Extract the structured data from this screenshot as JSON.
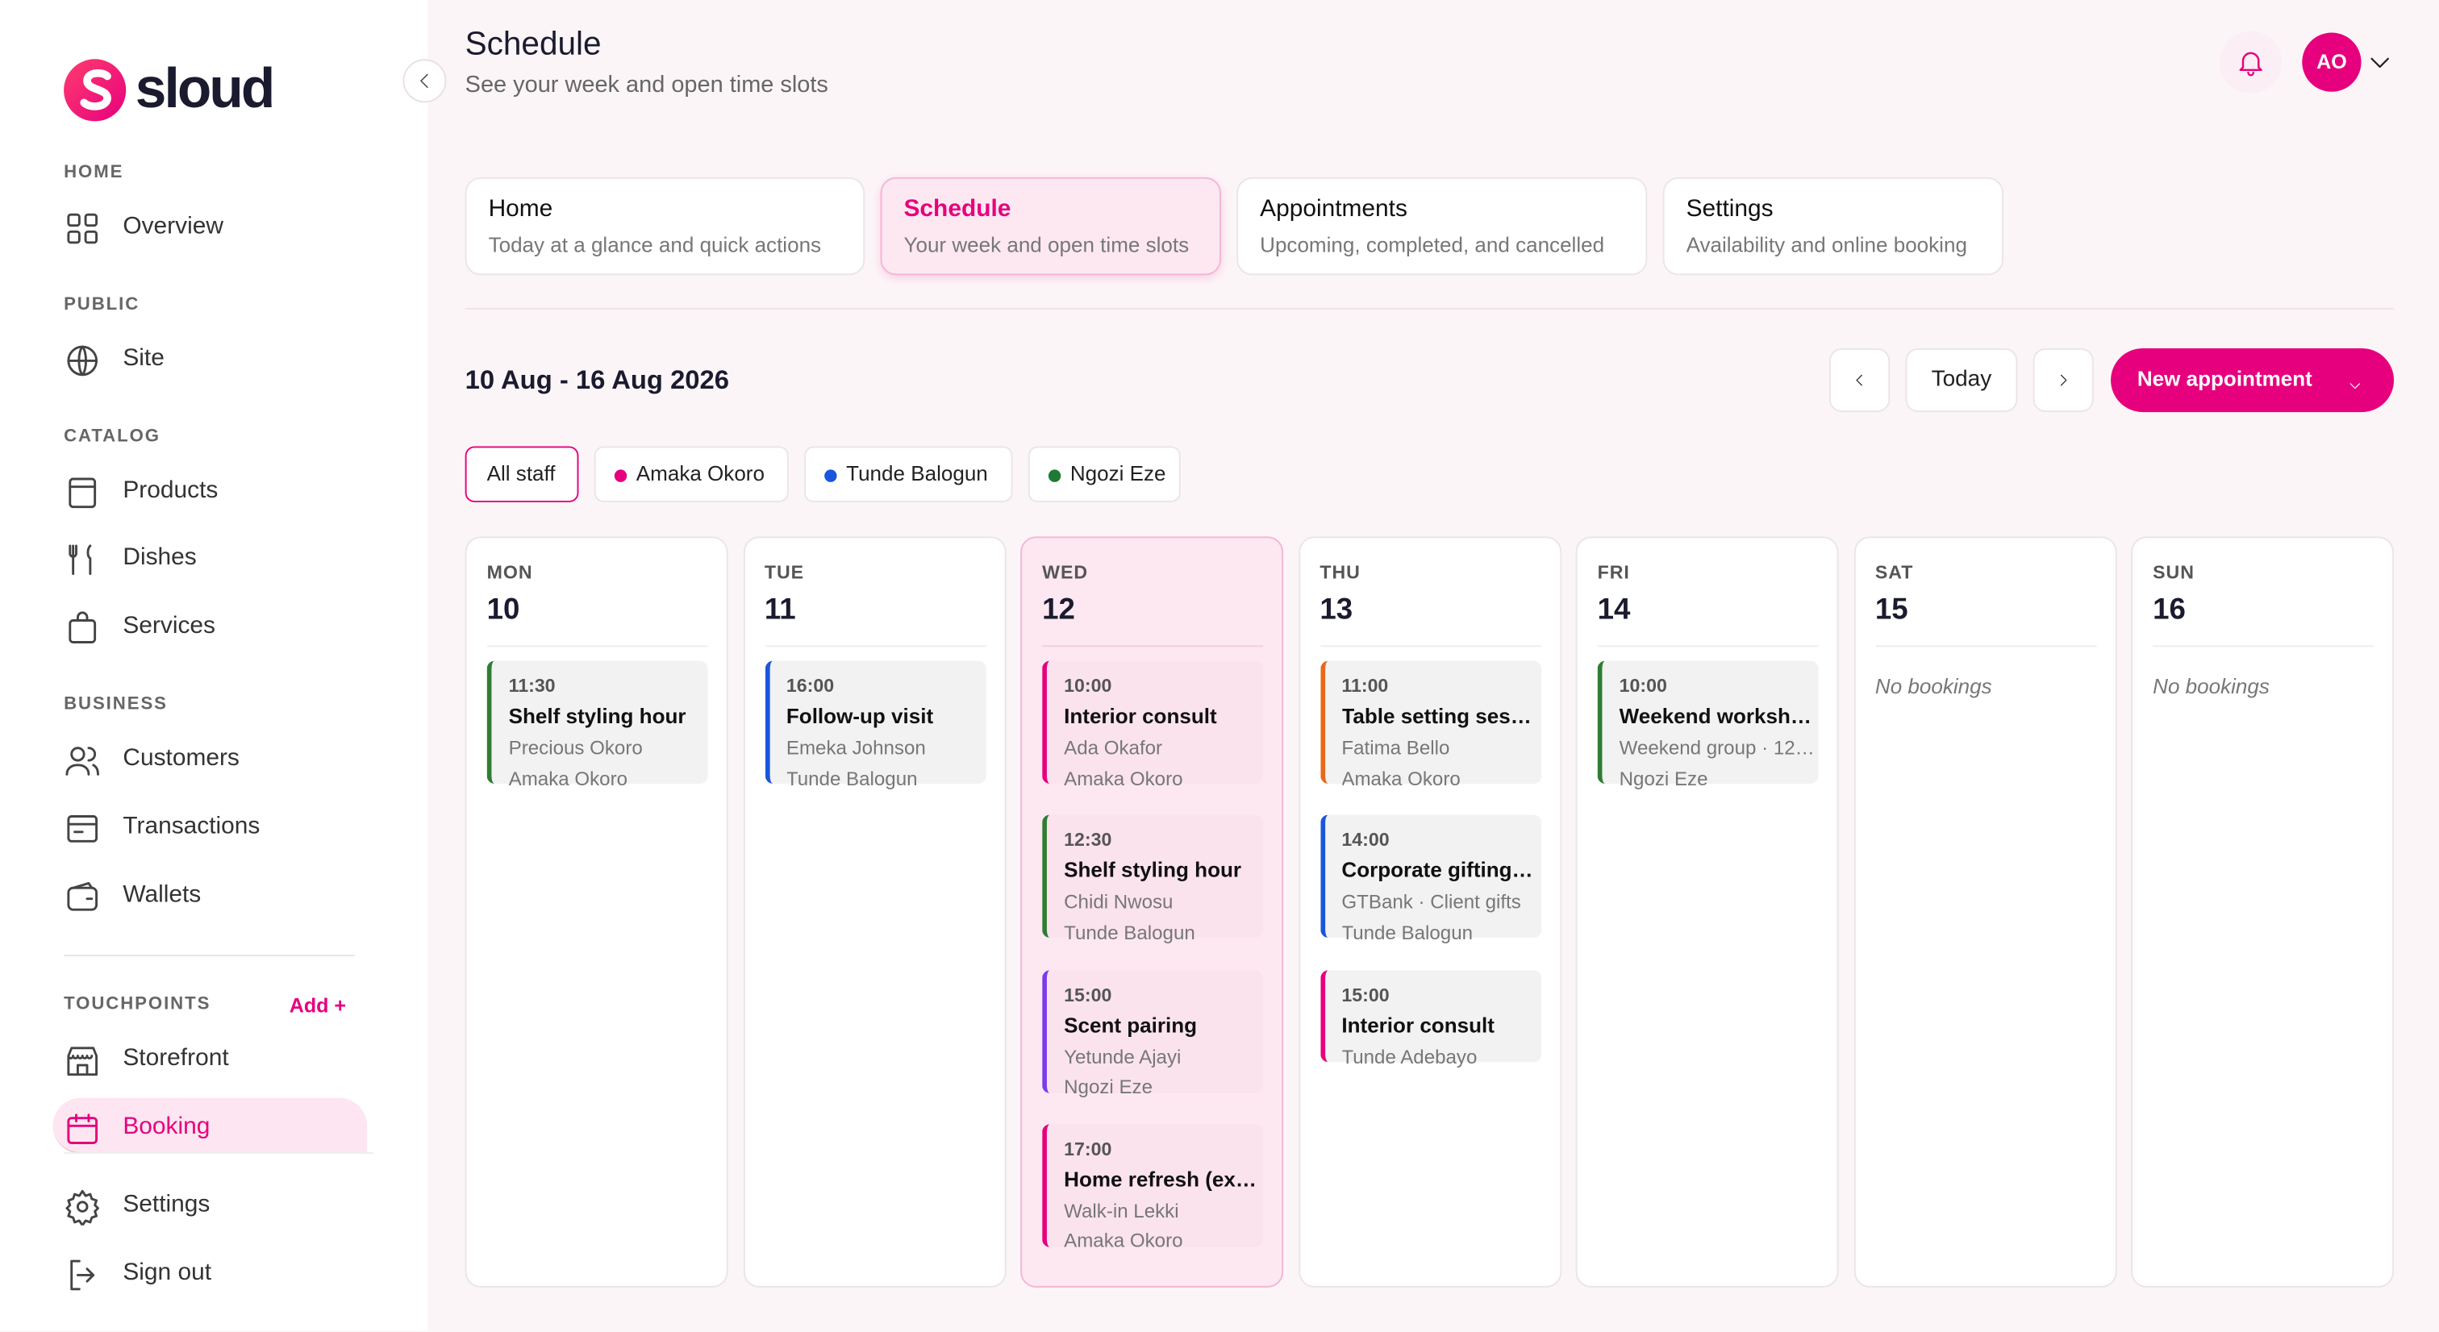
{
  "sidebar": {
    "logo": "sloud",
    "sections": [
      {
        "label": "HOME",
        "items": [
          {
            "label": "Overview"
          }
        ]
      },
      {
        "label": "PUBLIC",
        "items": [
          {
            "label": "Site"
          }
        ]
      },
      {
        "label": "CATALOG",
        "items": [
          {
            "label": "Products"
          },
          {
            "label": "Dishes"
          },
          {
            "label": "Services"
          }
        ]
      },
      {
        "label": "BUSINESS",
        "items": [
          {
            "label": "Customers"
          },
          {
            "label": "Transactions"
          },
          {
            "label": "Wallets"
          }
        ]
      },
      {
        "label": "TOUCHPOINTS",
        "action": "Add +",
        "items": [
          {
            "label": "Storefront"
          },
          {
            "label": "Booking",
            "active": true
          }
        ]
      }
    ],
    "footer": [
      {
        "label": "Settings"
      },
      {
        "label": "Sign out"
      }
    ]
  },
  "header": {
    "title": "Schedule",
    "subtitle": "See your week and open time slots",
    "avatar": "AO"
  },
  "tabs": [
    {
      "title": "Home",
      "subtitle": "Today at a glance and quick actions"
    },
    {
      "title": "Schedule",
      "subtitle": "Your week and open time slots",
      "active": true
    },
    {
      "title": "Appointments",
      "subtitle": "Upcoming, completed, and cancelled"
    },
    {
      "title": "Settings",
      "subtitle": "Availability and online booking"
    }
  ],
  "toolbar": {
    "range": "10 Aug - 16 Aug 2026",
    "today": "Today",
    "new": "New appointment"
  },
  "filters": [
    {
      "label": "All staff",
      "active": true
    },
    {
      "label": "Amaka Okoro",
      "color": "#e6007e"
    },
    {
      "label": "Tunde Balogun",
      "color": "#1a56db"
    },
    {
      "label": "Ngozi Eze",
      "color": "#1e7a34"
    }
  ],
  "days": [
    {
      "day": "MON",
      "date": "10",
      "bookings": [
        {
          "time": "11:30",
          "title": "Shelf styling hour",
          "lines": [
            "Precious Okoro",
            "Amaka Okoro"
          ],
          "color": "#2e7d32"
        }
      ]
    },
    {
      "day": "TUE",
      "date": "11",
      "bookings": [
        {
          "time": "16:00",
          "title": "Follow-up visit",
          "lines": [
            "Emeka Johnson",
            "Tunde Balogun"
          ],
          "color": "#1a56db"
        }
      ]
    },
    {
      "day": "WED",
      "date": "12",
      "highlight": true,
      "bookings": [
        {
          "time": "10:00",
          "title": "Interior consult",
          "lines": [
            "Ada Okafor",
            "Amaka Okoro"
          ],
          "color": "#e6007e"
        },
        {
          "time": "12:30",
          "title": "Shelf styling hour",
          "lines": [
            "Chidi Nwosu",
            "Tunde Balogun"
          ],
          "color": "#2e7d32"
        },
        {
          "time": "15:00",
          "title": "Scent pairing",
          "lines": [
            "Yetunde Ajayi",
            "Ngozi Eze"
          ],
          "color": "#7c3aed"
        },
        {
          "time": "17:00",
          "title": "Home refresh (ex…",
          "lines": [
            "Walk-in Lekki",
            "Amaka Okoro"
          ],
          "color": "#e6007e"
        }
      ]
    },
    {
      "day": "THU",
      "date": "13",
      "bookings": [
        {
          "time": "11:00",
          "title": "Table setting ses…",
          "lines": [
            "Fatima Bello",
            "Amaka Okoro"
          ],
          "color": "#e8681a"
        },
        {
          "time": "14:00",
          "title": "Corporate gifting…",
          "lines": [
            "GTBank · Client gifts",
            "Tunde Balogun"
          ],
          "color": "#1a56db"
        },
        {
          "time": "15:00",
          "title": "Interior consult",
          "lines": [
            "Tunde Adebayo"
          ],
          "color": "#e6007e"
        }
      ]
    },
    {
      "day": "FRI",
      "date": "14",
      "bookings": [
        {
          "time": "10:00",
          "title": "Weekend worksh…",
          "lines": [
            "Weekend group · 12 …",
            "Ngozi Eze"
          ],
          "color": "#2e7d32"
        }
      ]
    },
    {
      "day": "SAT",
      "date": "15",
      "bookings": [],
      "empty": "No bookings"
    },
    {
      "day": "SUN",
      "date": "16",
      "bookings": [],
      "empty": "No bookings"
    }
  ]
}
